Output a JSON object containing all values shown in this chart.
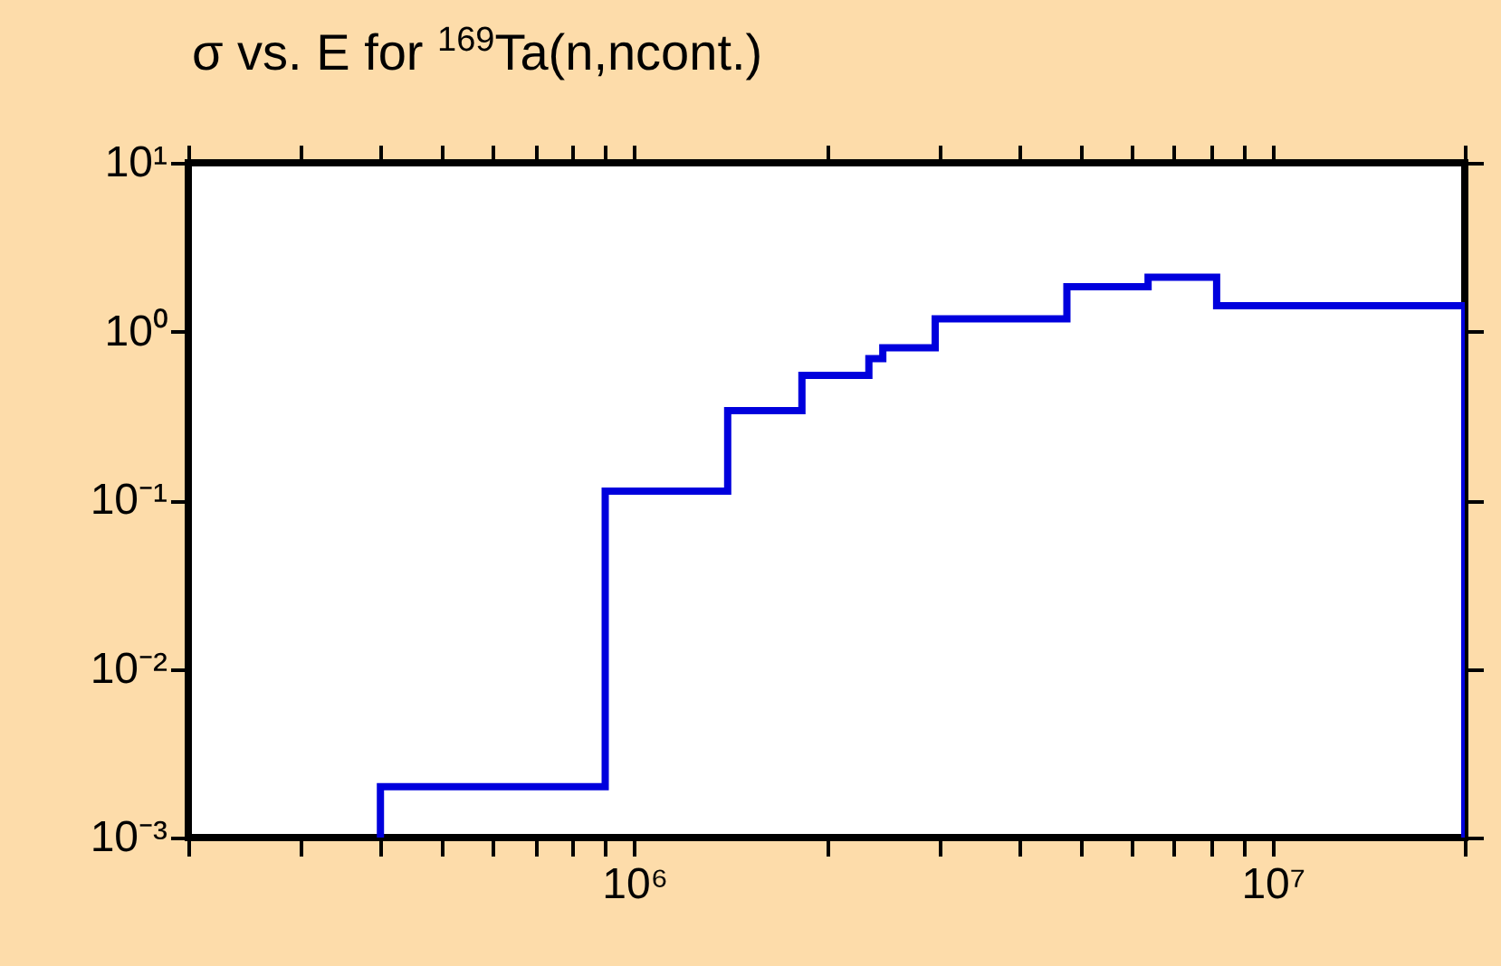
{
  "chart_data": {
    "type": "step",
    "title": "σ vs. E for $^{169}$Ta(n,ncont.)",
    "log": "xy",
    "grid": false,
    "xlim": [
      200000,
      20000000
    ],
    "xticks": [
      {
        "value": 200000,
        "label": null
      },
      {
        "value": 300000,
        "label": null
      },
      {
        "value": 400000,
        "label": null
      },
      {
        "value": 500000,
        "label": null
      },
      {
        "value": 600000,
        "label": null
      },
      {
        "value": 700000,
        "label": null
      },
      {
        "value": 800000,
        "label": null
      },
      {
        "value": 900000,
        "label": null
      },
      {
        "value": 1000000,
        "label": "10⁶"
      },
      {
        "value": 2000000,
        "label": null
      },
      {
        "value": 3000000,
        "label": null
      },
      {
        "value": 4000000,
        "label": null
      },
      {
        "value": 5000000,
        "label": null
      },
      {
        "value": 6000000,
        "label": null
      },
      {
        "value": 7000000,
        "label": null
      },
      {
        "value": 8000000,
        "label": null
      },
      {
        "value": 9000000,
        "label": null
      },
      {
        "value": 10000000,
        "label": "10⁷"
      },
      {
        "value": 20000000,
        "label": null
      }
    ],
    "ylim": [
      0.001,
      10
    ],
    "yticks": [
      {
        "value": 0.001,
        "label": "10⁻³"
      },
      {
        "value": 0.01,
        "label": "10⁻²"
      },
      {
        "value": 0.1,
        "label": "10⁻¹"
      },
      {
        "value": 1,
        "label": "10⁰"
      },
      {
        "value": 10,
        "label": "10¹"
      }
    ],
    "series": [
      {
        "color": "#0000dd",
        "x": [
          400000,
          400000,
          900000,
          1400000,
          1830000,
          2330000,
          2450000,
          2960000,
          4760000,
          6380000,
          8170000,
          20000000,
          20000000
        ],
        "values": [
          0.001,
          0.002,
          0.113,
          0.34,
          0.55,
          0.69,
          0.8,
          1.19,
          1.84,
          2.1,
          1.42,
          1.42,
          0.001
        ]
      }
    ]
  }
}
